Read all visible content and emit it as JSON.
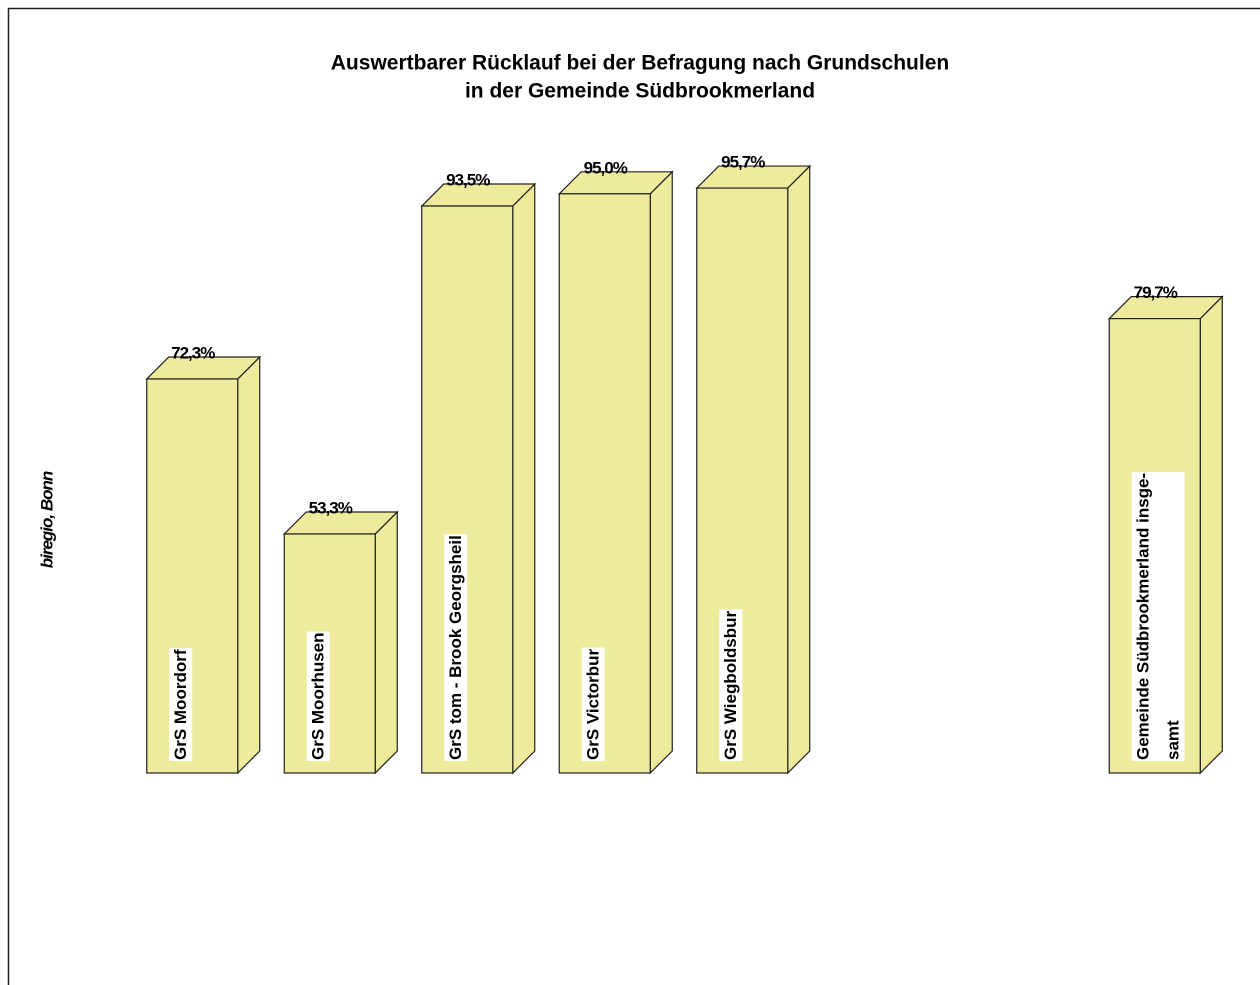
{
  "chart_data": {
    "type": "bar3d",
    "title": [
      "Auswertbarer Rücklauf bei der Befragung nach Grundschulen",
      "in der Gemeinde Südbrookmerland"
    ],
    "source": "biregio, Bonn",
    "categories": [
      "GrS Moordorf",
      "GrS Moorhusen",
      "GrS tom - Brook Georgsheil",
      "GrS Victorbur",
      "GrS Wiegboldsbur",
      null,
      null,
      "Gemeinde Südbrookmerland insge-\nsamt"
    ],
    "values": [
      72.3,
      53.3,
      93.5,
      95.0,
      95.7,
      null,
      null,
      79.7
    ],
    "value_labels": [
      "72,3%",
      "53,3%",
      "93,5%",
      "95,0%",
      "95,7%",
      null,
      null,
      "79,7%"
    ],
    "color": "#eeeb9c",
    "ylim": [
      24,
      100
    ]
  }
}
